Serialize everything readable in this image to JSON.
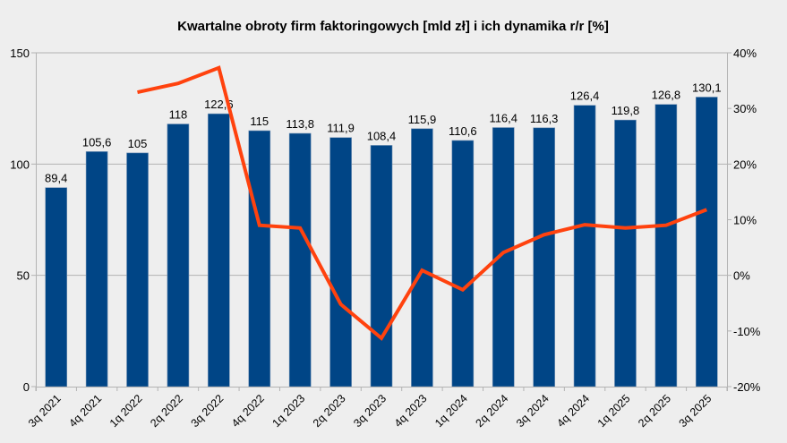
{
  "chart_data": {
    "type": "bar+line",
    "title": "Kwartalne obroty firm faktoringowych [mld zł] i ich dynamika r/r [%]",
    "categories": [
      "3q 2021",
      "4q 2021",
      "1q 2022",
      "2q 2022",
      "3q 2022",
      "4q 2022",
      "1q 2023",
      "2q 2023",
      "3q 2023",
      "4q 2023",
      "1q 2024",
      "2q 2024",
      "3q 2024",
      "4q 2024",
      "1q 2025",
      "2q 2025",
      "3q 2025"
    ],
    "series": [
      {
        "name": "Obroty [mld zł]",
        "type": "bar",
        "axis": "left",
        "color": "#004586",
        "values": [
          89.4,
          105.6,
          105,
          118,
          122.6,
          115,
          113.8,
          111.9,
          108.4,
          115.9,
          110.6,
          116.4,
          116.3,
          126.4,
          119.8,
          126.8,
          130.1
        ],
        "labels": [
          "89,4",
          "105,6",
          "105",
          "118",
          "122,6",
          "115",
          "113,8",
          "111,9",
          "108,4",
          "115,9",
          "110,6",
          "116,4",
          "116,3",
          "126,4",
          "119,8",
          "126,8",
          "130,1"
        ]
      },
      {
        "name": "Dynamika r/r [%]",
        "type": "line",
        "axis": "right",
        "color": "#ff420e",
        "values": [
          null,
          null,
          32.9,
          34.5,
          37.3,
          9.0,
          8.5,
          -5.2,
          -11.3,
          0.9,
          -2.6,
          4.1,
          7.3,
          9.1,
          8.5,
          9.0,
          11.8
        ]
      }
    ],
    "left_axis": {
      "min": 0,
      "max": 150,
      "ticks": [
        0,
        50,
        100,
        150
      ],
      "tick_labels": [
        "0",
        "50",
        "100",
        "150"
      ]
    },
    "right_axis": {
      "min": -20,
      "max": 40,
      "ticks": [
        -20,
        -10,
        0,
        10,
        20,
        30,
        40
      ],
      "tick_labels": [
        "-20%",
        "-10%",
        "0%",
        "10%",
        "20%",
        "30%",
        "40%"
      ]
    },
    "xlabel": "",
    "ylabel": "",
    "grid": true,
    "legend": "none"
  },
  "colors": {
    "background": "#eeeeee",
    "bar": "#004586",
    "line": "#ff420e",
    "grid": "#b3b3b3",
    "axis": "#b3b3b3"
  }
}
